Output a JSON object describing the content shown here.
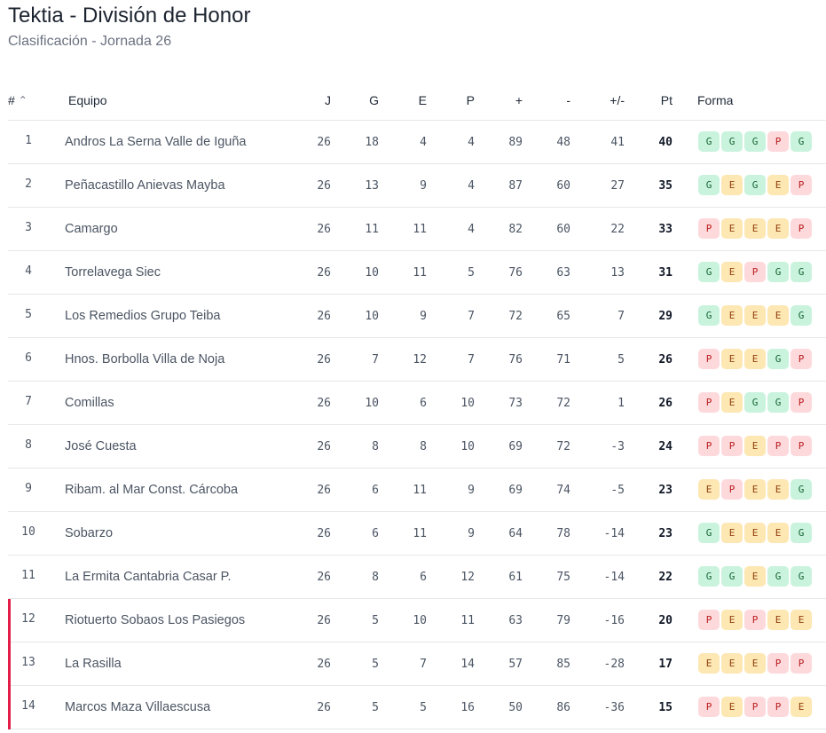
{
  "header": {
    "title": "Tektia - División de Honor",
    "subtitle": "Clasificación - Jornada 26"
  },
  "columns": {
    "pos": "#",
    "team": "Equipo",
    "j": "J",
    "g": "G",
    "e": "E",
    "p": "P",
    "gf": "+",
    "ga": "-",
    "diff": "+/-",
    "pts": "Pt",
    "form": "Forma"
  },
  "sort_icon": "chevron-up-icon",
  "colors": {
    "relegation": "#e11d48",
    "win": "#c9f3dd",
    "draw": "#fde7b2",
    "loss": "#fdd9dc"
  },
  "rows": [
    {
      "pos": "1",
      "team": "Andros La Serna Valle de Iguña",
      "j": "26",
      "g": "18",
      "e": "4",
      "p": "4",
      "gf": "89",
      "ga": "48",
      "diff": "41",
      "pts": "40",
      "form": [
        "G",
        "G",
        "G",
        "P",
        "G"
      ],
      "relegation": false
    },
    {
      "pos": "2",
      "team": "Peñacastillo Anievas Mayba",
      "j": "26",
      "g": "13",
      "e": "9",
      "p": "4",
      "gf": "87",
      "ga": "60",
      "diff": "27",
      "pts": "35",
      "form": [
        "G",
        "E",
        "G",
        "E",
        "P"
      ],
      "relegation": false
    },
    {
      "pos": "3",
      "team": "Camargo",
      "j": "26",
      "g": "11",
      "e": "11",
      "p": "4",
      "gf": "82",
      "ga": "60",
      "diff": "22",
      "pts": "33",
      "form": [
        "P",
        "E",
        "E",
        "E",
        "P"
      ],
      "relegation": false
    },
    {
      "pos": "4",
      "team": "Torrelavega Siec",
      "j": "26",
      "g": "10",
      "e": "11",
      "p": "5",
      "gf": "76",
      "ga": "63",
      "diff": "13",
      "pts": "31",
      "form": [
        "G",
        "E",
        "P",
        "G",
        "G"
      ],
      "relegation": false
    },
    {
      "pos": "5",
      "team": "Los Remedios Grupo Teiba",
      "j": "26",
      "g": "10",
      "e": "9",
      "p": "7",
      "gf": "72",
      "ga": "65",
      "diff": "7",
      "pts": "29",
      "form": [
        "G",
        "E",
        "E",
        "E",
        "G"
      ],
      "relegation": false
    },
    {
      "pos": "6",
      "team": "Hnos. Borbolla Villa de Noja",
      "j": "26",
      "g": "7",
      "e": "12",
      "p": "7",
      "gf": "76",
      "ga": "71",
      "diff": "5",
      "pts": "26",
      "form": [
        "P",
        "E",
        "E",
        "G",
        "P"
      ],
      "relegation": false
    },
    {
      "pos": "7",
      "team": "Comillas",
      "j": "26",
      "g": "10",
      "e": "6",
      "p": "10",
      "gf": "73",
      "ga": "72",
      "diff": "1",
      "pts": "26",
      "form": [
        "P",
        "E",
        "G",
        "G",
        "P"
      ],
      "relegation": false
    },
    {
      "pos": "8",
      "team": "José Cuesta",
      "j": "26",
      "g": "8",
      "e": "8",
      "p": "10",
      "gf": "69",
      "ga": "72",
      "diff": "-3",
      "pts": "24",
      "form": [
        "P",
        "P",
        "E",
        "P",
        "P"
      ],
      "relegation": false
    },
    {
      "pos": "9",
      "team": "Ribam. al Mar Const. Cárcoba",
      "j": "26",
      "g": "6",
      "e": "11",
      "p": "9",
      "gf": "69",
      "ga": "74",
      "diff": "-5",
      "pts": "23",
      "form": [
        "E",
        "P",
        "E",
        "E",
        "G"
      ],
      "relegation": false
    },
    {
      "pos": "10",
      "team": "Sobarzo",
      "j": "26",
      "g": "6",
      "e": "11",
      "p": "9",
      "gf": "64",
      "ga": "78",
      "diff": "-14",
      "pts": "23",
      "form": [
        "G",
        "E",
        "E",
        "E",
        "G"
      ],
      "relegation": false
    },
    {
      "pos": "11",
      "team": "La Ermita Cantabria Casar P.",
      "j": "26",
      "g": "8",
      "e": "6",
      "p": "12",
      "gf": "61",
      "ga": "75",
      "diff": "-14",
      "pts": "22",
      "form": [
        "G",
        "G",
        "E",
        "G",
        "G"
      ],
      "relegation": false
    },
    {
      "pos": "12",
      "team": "Riotuerto Sobaos Los Pasiegos",
      "j": "26",
      "g": "5",
      "e": "10",
      "p": "11",
      "gf": "63",
      "ga": "79",
      "diff": "-16",
      "pts": "20",
      "form": [
        "P",
        "E",
        "P",
        "E",
        "E"
      ],
      "relegation": true
    },
    {
      "pos": "13",
      "team": "La Rasilla",
      "j": "26",
      "g": "5",
      "e": "7",
      "p": "14",
      "gf": "57",
      "ga": "85",
      "diff": "-28",
      "pts": "17",
      "form": [
        "E",
        "E",
        "E",
        "P",
        "P"
      ],
      "relegation": true
    },
    {
      "pos": "14",
      "team": "Marcos Maza Villaescusa",
      "j": "26",
      "g": "5",
      "e": "5",
      "p": "16",
      "gf": "50",
      "ga": "86",
      "diff": "-36",
      "pts": "15",
      "form": [
        "P",
        "E",
        "P",
        "P",
        "E"
      ],
      "relegation": true
    }
  ]
}
